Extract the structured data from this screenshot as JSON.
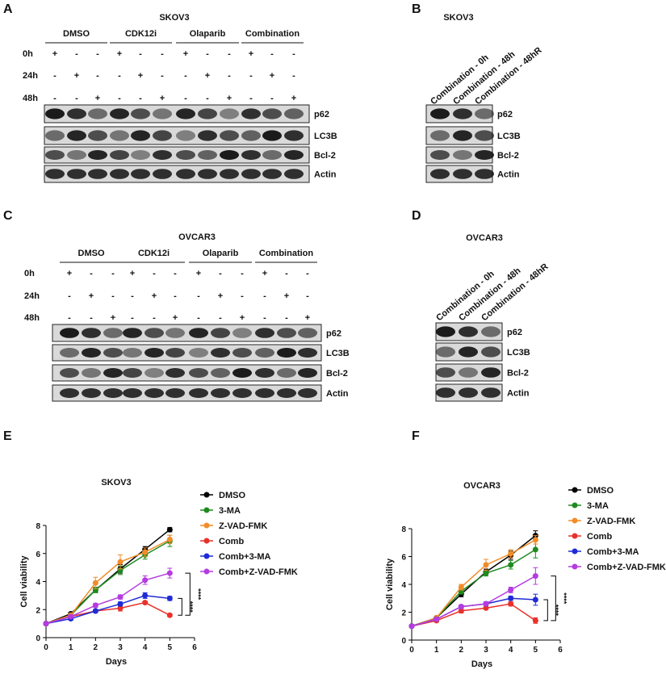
{
  "panels": [
    {
      "letter": "A",
      "title": "SKOV3",
      "groups": [
        "DMSO",
        "CDK12i",
        "Olaparib",
        "Combination"
      ],
      "timepoints": [
        "0h",
        "24h",
        "48h"
      ],
      "signs": [
        [
          "+",
          "-",
          "-"
        ],
        [
          "-",
          "+",
          "-"
        ],
        [
          "-",
          "-",
          "+"
        ]
      ],
      "proteins": [
        "p62",
        "LC3B",
        "Bcl-2",
        "Actin"
      ]
    },
    {
      "letter": "B",
      "title": "SKOV3",
      "lanes": [
        "Combination - 0h",
        "Combination - 48h",
        "Combination - 48hR"
      ],
      "proteins": [
        "p62",
        "LC3B",
        "Bcl-2",
        "Actin"
      ]
    },
    {
      "letter": "C",
      "title": "OVCAR3",
      "groups": [
        "DMSO",
        "CDK12i",
        "Olaparib",
        "Combination"
      ],
      "timepoints": [
        "0h",
        "24h",
        "48h"
      ],
      "signs": [
        [
          "+",
          "-",
          "-"
        ],
        [
          "-",
          "+",
          "-"
        ],
        [
          "-",
          "-",
          "+"
        ]
      ],
      "proteins": [
        "p62",
        "LC3B",
        "Bcl-2",
        "Actin"
      ]
    },
    {
      "letter": "D",
      "title": "OVCAR3",
      "lanes": [
        "Combination - 0h",
        "Combination - 48h",
        "Combination - 48hR"
      ],
      "proteins": [
        "p62",
        "LC3B",
        "Bcl-2",
        "Actin"
      ]
    }
  ],
  "chart_data": [
    {
      "type": "line",
      "letter": "E",
      "title": "SKOV3",
      "x_label": "Days",
      "y_label": "Cell viability",
      "x": [
        0,
        1,
        2,
        3,
        4,
        5
      ],
      "xlim": [
        0,
        6
      ],
      "xticks": [
        0,
        1,
        2,
        3,
        4,
        5,
        6
      ],
      "ylim": [
        0,
        8
      ],
      "yticks": [
        0,
        2,
        4,
        6,
        8
      ],
      "annotations": [
        "****",
        "****"
      ],
      "series": [
        {
          "name": "DMSO",
          "color": "#000000",
          "values": [
            1,
            1.7,
            3.4,
            4.9,
            6.3,
            7.7
          ],
          "errors": [
            0.05,
            0.1,
            0.15,
            0.3,
            0.2,
            0.15
          ]
        },
        {
          "name": "3-MA",
          "color": "#1f8a1f",
          "values": [
            1,
            1.6,
            3.4,
            4.8,
            5.9,
            6.9
          ],
          "errors": [
            0.05,
            0.1,
            0.2,
            0.3,
            0.3,
            0.4
          ]
        },
        {
          "name": "Z-VAD-FMK",
          "color": "#f28c28",
          "values": [
            1,
            1.6,
            3.9,
            5.4,
            6.1,
            7.0
          ],
          "errors": [
            0.05,
            0.1,
            0.4,
            0.5,
            0.3,
            0.3
          ]
        },
        {
          "name": "Comb",
          "color": "#e8312a",
          "values": [
            1,
            1.5,
            1.9,
            2.1,
            2.5,
            1.6
          ],
          "errors": [
            0.05,
            0.1,
            0.1,
            0.2,
            0.1,
            0.1
          ]
        },
        {
          "name": "Comb+3-MA",
          "color": "#1f2bd6",
          "values": [
            1,
            1.35,
            1.9,
            2.4,
            3.0,
            2.8
          ],
          "errors": [
            0.05,
            0.1,
            0.1,
            0.15,
            0.2,
            0.15
          ]
        },
        {
          "name": "Comb+Z-VAD-FMK",
          "color": "#b43ce0",
          "values": [
            1,
            1.5,
            2.3,
            2.9,
            4.1,
            4.6
          ],
          "errors": [
            0.05,
            0.1,
            0.15,
            0.15,
            0.3,
            0.35
          ]
        }
      ]
    },
    {
      "type": "line",
      "letter": "F",
      "title": "OVCAR3",
      "x_label": "Days",
      "y_label": "Cell viability",
      "x": [
        0,
        1,
        2,
        3,
        4,
        5
      ],
      "xlim": [
        0,
        6
      ],
      "xticks": [
        0,
        1,
        2,
        3,
        4,
        5,
        6
      ],
      "ylim": [
        0,
        8
      ],
      "yticks": [
        0,
        2,
        4,
        6,
        8
      ],
      "annotations": [
        "****",
        "****"
      ],
      "series": [
        {
          "name": "DMSO",
          "color": "#000000",
          "values": [
            1,
            1.6,
            3.3,
            4.9,
            6.1,
            7.5
          ],
          "errors": [
            0.05,
            0.1,
            0.2,
            0.2,
            0.3,
            0.35
          ]
        },
        {
          "name": "3-MA",
          "color": "#1f8a1f",
          "values": [
            1,
            1.6,
            3.5,
            4.8,
            5.4,
            6.5
          ],
          "errors": [
            0.05,
            0.1,
            0.2,
            0.2,
            0.3,
            0.6
          ]
        },
        {
          "name": "Z-VAD-FMK",
          "color": "#f28c28",
          "values": [
            1,
            1.6,
            3.8,
            5.4,
            6.2,
            7.2
          ],
          "errors": [
            0.05,
            0.1,
            0.2,
            0.4,
            0.3,
            0.3
          ]
        },
        {
          "name": "Comb",
          "color": "#e8312a",
          "values": [
            1,
            1.4,
            2.1,
            2.3,
            2.6,
            1.4
          ],
          "errors": [
            0.05,
            0.1,
            0.15,
            0.1,
            0.15,
            0.2
          ]
        },
        {
          "name": "Comb+3-MA",
          "color": "#1f2bd6",
          "values": [
            1,
            1.5,
            2.4,
            2.6,
            3.0,
            2.9
          ],
          "errors": [
            0.05,
            0.1,
            0.1,
            0.15,
            0.15,
            0.4
          ]
        },
        {
          "name": "Comb+Z-VAD-FMK",
          "color": "#b43ce0",
          "values": [
            1,
            1.5,
            2.4,
            2.6,
            3.6,
            4.6
          ],
          "errors": [
            0.05,
            0.1,
            0.1,
            0.15,
            0.2,
            0.6
          ]
        }
      ]
    }
  ]
}
